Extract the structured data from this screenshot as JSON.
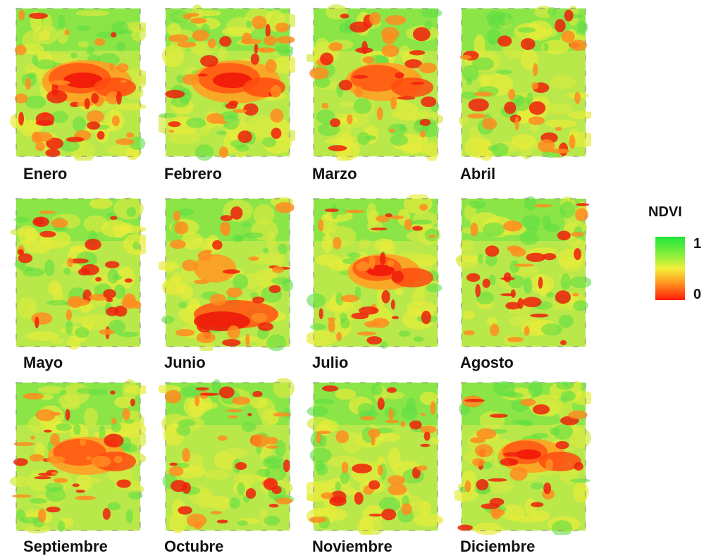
{
  "months": [
    {
      "label": "Enero",
      "dryness": 0.62,
      "hotspot": "center-strong"
    },
    {
      "label": "Febrero",
      "dryness": 0.62,
      "hotspot": "center-strong"
    },
    {
      "label": "Marzo",
      "dryness": 0.5,
      "hotspot": "center"
    },
    {
      "label": "Abril",
      "dryness": 0.35,
      "hotspot": "scattered"
    },
    {
      "label": "Mayo",
      "dryness": 0.45,
      "hotspot": "scattered"
    },
    {
      "label": "Junio",
      "dryness": 0.4,
      "hotspot": "south"
    },
    {
      "label": "Julio",
      "dryness": 0.45,
      "hotspot": "center-strong"
    },
    {
      "label": "Agosto",
      "dryness": 0.45,
      "hotspot": "scattered"
    },
    {
      "label": "Septiembre",
      "dryness": 0.5,
      "hotspot": "center"
    },
    {
      "label": "Octubre",
      "dryness": 0.5,
      "hotspot": "scattered"
    },
    {
      "label": "Noviembre",
      "dryness": 0.5,
      "hotspot": "scattered"
    },
    {
      "label": "Diciembre",
      "dryness": 0.4,
      "hotspot": "center-strong"
    }
  ],
  "legend": {
    "title": "NDVI",
    "max_label": "1",
    "min_label": "0",
    "colors": [
      "#1ee63c",
      "#f2f03a",
      "#ff1a0a"
    ]
  }
}
